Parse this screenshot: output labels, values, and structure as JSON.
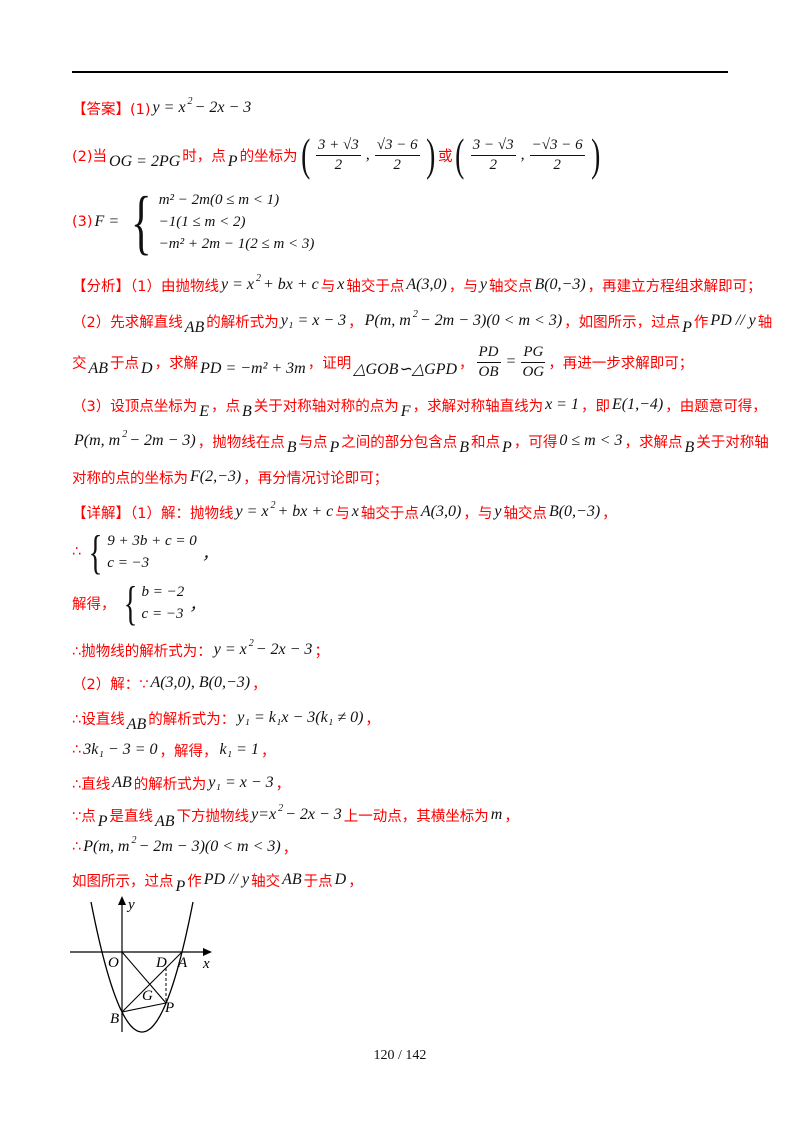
{
  "lines": [
    {
      "segs": [
        {
          "t": "r",
          "v": "【答案】(1)"
        },
        {
          "t": "m",
          "v": "y = x"
        },
        {
          "t": "s",
          "v": "2"
        },
        {
          "t": "m",
          "v": " − 2x − 3"
        }
      ]
    },
    {
      "segs": [
        {
          "t": "r",
          "v": "(2)当"
        },
        {
          "t": "l",
          "v": "OG = 2PG"
        },
        {
          "t": "r",
          "v": "时，点"
        },
        {
          "t": "l",
          "v": "P"
        },
        {
          "t": "r",
          "v": "的坐标为"
        },
        {
          "t": "bp",
          "v": "("
        },
        {
          "t": "f",
          "n": "3 + √3",
          "d": "2"
        },
        {
          "t": "m",
          "v": ","
        },
        {
          "t": "f",
          "n": "√3 − 6",
          "d": "2"
        },
        {
          "t": "bp",
          "v": ")"
        },
        {
          "t": "r",
          "v": "或"
        },
        {
          "t": "bp",
          "v": "("
        },
        {
          "t": "f",
          "n": "3 − √3",
          "d": "2"
        },
        {
          "t": "m",
          "v": ","
        },
        {
          "t": "f",
          "n": "−√3 − 6",
          "d": "2"
        },
        {
          "t": "bp",
          "v": ")"
        }
      ]
    },
    {
      "segs": [
        {
          "t": "r",
          "v": "(3)"
        },
        {
          "t": "m",
          "v": "F ="
        },
        {
          "t": "sys",
          "rows": [
            "m² − 2m(0 ≤ m < 1)",
            "−1(1 ≤ m < 2)",
            "−m² + 2m − 1(2 ≤ m < 3)"
          ]
        }
      ]
    },
    {
      "segs": [
        {
          "t": "r",
          "v": "【分析】（1）由抛物线"
        },
        {
          "t": "m",
          "v": "y = x"
        },
        {
          "t": "s",
          "v": "2"
        },
        {
          "t": "m",
          "v": " + bx + c"
        },
        {
          "t": "r",
          "v": "与"
        },
        {
          "t": "m",
          "v": "x"
        },
        {
          "t": "r",
          "v": "轴交于点"
        },
        {
          "t": "m",
          "v": "A(3,0)"
        },
        {
          "t": "r",
          "v": "，与"
        },
        {
          "t": "m",
          "v": "y"
        },
        {
          "t": "r",
          "v": "轴交点"
        },
        {
          "t": "m",
          "v": "B(0,−3)"
        },
        {
          "t": "r",
          "v": "，再建立方程组求解即可；"
        }
      ]
    },
    {
      "segs": [
        {
          "t": "r",
          "v": "（2）先求解直线"
        },
        {
          "t": "l",
          "v": "AB"
        },
        {
          "t": "r",
          "v": "的解析式为"
        },
        {
          "t": "m",
          "v": "y₁ = x − 3"
        },
        {
          "t": "r",
          "v": "，"
        },
        {
          "t": "m",
          "v": "P(m, m"
        },
        {
          "t": "s",
          "v": "2"
        },
        {
          "t": "m",
          "v": " − 2m − 3)(0 < m < 3)"
        },
        {
          "t": "r",
          "v": "，如图所示，过点"
        },
        {
          "t": "l",
          "v": "P"
        },
        {
          "t": "r",
          "v": "作"
        },
        {
          "t": "m",
          "v": "PD // y"
        },
        {
          "t": "r",
          "v": "轴"
        }
      ]
    },
    {
      "segs": [
        {
          "t": "r",
          "v": "交"
        },
        {
          "t": "l",
          "v": "AB"
        },
        {
          "t": "r",
          "v": "于点"
        },
        {
          "t": "l",
          "v": "D"
        },
        {
          "t": "r",
          "v": "，求解"
        },
        {
          "t": "l",
          "v": "PD = −m² + 3m"
        },
        {
          "t": "r",
          "v": "，证明"
        },
        {
          "t": "l",
          "v": "△GOB∽△GPD"
        },
        {
          "t": "r",
          "v": "，"
        },
        {
          "t": "f",
          "n": "PD",
          "d": "OB"
        },
        {
          "t": "m",
          "v": "="
        },
        {
          "t": "f",
          "n": "PG",
          "d": "OG"
        },
        {
          "t": "r",
          "v": "，再进一步求解即可；"
        }
      ]
    },
    {
      "segs": [
        {
          "t": "r",
          "v": "（3）设顶点坐标为"
        },
        {
          "t": "l",
          "v": "E"
        },
        {
          "t": "r",
          "v": "，点"
        },
        {
          "t": "l",
          "v": "B"
        },
        {
          "t": "r",
          "v": "关于对称轴对称的点为"
        },
        {
          "t": "l",
          "v": "F"
        },
        {
          "t": "r",
          "v": "，求解对称轴直线为"
        },
        {
          "t": "m",
          "v": "x = 1"
        },
        {
          "t": "r",
          "v": "，即"
        },
        {
          "t": "m",
          "v": "E(1,−4)"
        },
        {
          "t": "r",
          "v": "，由题意可得，"
        }
      ]
    },
    {
      "segs": [
        {
          "t": "m",
          "v": "P(m, m"
        },
        {
          "t": "s",
          "v": "2"
        },
        {
          "t": "m",
          "v": " − 2m − 3)"
        },
        {
          "t": "r",
          "v": "，抛物线在点"
        },
        {
          "t": "l",
          "v": "B"
        },
        {
          "t": "r",
          "v": "与点"
        },
        {
          "t": "l",
          "v": "P"
        },
        {
          "t": "r",
          "v": "之间的部分包含点"
        },
        {
          "t": "l",
          "v": "B"
        },
        {
          "t": "r",
          "v": "和点"
        },
        {
          "t": "l",
          "v": "P"
        },
        {
          "t": "r",
          "v": "，可得"
        },
        {
          "t": "m",
          "v": "0 ≤ m < 3"
        },
        {
          "t": "r",
          "v": "，求解点"
        },
        {
          "t": "l",
          "v": "B"
        },
        {
          "t": "r",
          "v": "关于对称轴"
        }
      ]
    },
    {
      "segs": [
        {
          "t": "r",
          "v": "对称的点的坐标为"
        },
        {
          "t": "m",
          "v": "F(2,−3)"
        },
        {
          "t": "r",
          "v": "，再分情况讨论即可；"
        }
      ]
    },
    {
      "segs": [
        {
          "t": "r",
          "v": "【详解】（1）解：抛物线"
        },
        {
          "t": "m",
          "v": "y = x"
        },
        {
          "t": "s",
          "v": "2"
        },
        {
          "t": "m",
          "v": " + bx + c"
        },
        {
          "t": "r",
          "v": "与"
        },
        {
          "t": "m",
          "v": "x"
        },
        {
          "t": "r",
          "v": "轴交于点"
        },
        {
          "t": "m",
          "v": "A(3,0)"
        },
        {
          "t": "r",
          "v": "，与"
        },
        {
          "t": "m",
          "v": "y"
        },
        {
          "t": "r",
          "v": "轴交点"
        },
        {
          "t": "m",
          "v": "B(0,−3)"
        },
        {
          "t": "r",
          "v": "，"
        }
      ]
    },
    {
      "segs": [
        {
          "t": "r",
          "v": "∴"
        },
        {
          "t": "sys",
          "rows": [
            "9 + 3b + c = 0",
            "c = −3"
          ]
        },
        {
          "t": "m",
          "v": "，"
        }
      ]
    },
    {
      "segs": [
        {
          "t": "r",
          "v": "解得，"
        },
        {
          "t": "sys",
          "rows": [
            "b = −2",
            "c = −3"
          ]
        },
        {
          "t": "m",
          "v": "，"
        }
      ]
    },
    {
      "segs": [
        {
          "t": "r",
          "v": "∴抛物线的解析式为："
        },
        {
          "t": "m",
          "v": "y = x"
        },
        {
          "t": "s",
          "v": "2"
        },
        {
          "t": "m",
          "v": " − 2x − 3"
        },
        {
          "t": "r",
          "v": "；"
        }
      ]
    },
    {
      "segs": [
        {
          "t": "r",
          "v": "（2）解：∵"
        },
        {
          "t": "m",
          "v": "A(3,0), B(0,−3)"
        },
        {
          "t": "r",
          "v": "，"
        }
      ]
    },
    {
      "segs": [
        {
          "t": "r",
          "v": "∴设直线"
        },
        {
          "t": "l",
          "v": "AB"
        },
        {
          "t": "r",
          "v": "的解析式为："
        },
        {
          "t": "m",
          "v": "y₁ = k₁x − 3(k₁ ≠ 0)"
        },
        {
          "t": "r",
          "v": "，"
        }
      ]
    },
    {
      "segs": [
        {
          "t": "r",
          "v": "∴"
        },
        {
          "t": "m",
          "v": "3k₁ − 3 = 0"
        },
        {
          "t": "r",
          "v": "，解得，"
        },
        {
          "t": "m",
          "v": "k₁ = 1"
        },
        {
          "t": "r",
          "v": "，"
        }
      ]
    },
    {
      "segs": [
        {
          "t": "r",
          "v": "∴直线"
        },
        {
          "t": "m",
          "v": "AB"
        },
        {
          "t": "r",
          "v": "的解析式为"
        },
        {
          "t": "m",
          "v": "y₁ = x − 3"
        },
        {
          "t": "r",
          "v": "，"
        }
      ]
    },
    {
      "segs": [
        {
          "t": "r",
          "v": "∵点"
        },
        {
          "t": "l",
          "v": "P"
        },
        {
          "t": "r",
          "v": "是直线"
        },
        {
          "t": "l",
          "v": "AB"
        },
        {
          "t": "r",
          "v": "下方抛物线"
        },
        {
          "t": "m",
          "v": "y=x"
        },
        {
          "t": "s",
          "v": "2"
        },
        {
          "t": "m",
          "v": " − 2x − 3"
        },
        {
          "t": "r",
          "v": "上一动点，其横坐标为"
        },
        {
          "t": "m",
          "v": "m"
        },
        {
          "t": "r",
          "v": "，"
        }
      ]
    },
    {
      "segs": [
        {
          "t": "r",
          "v": "∴"
        },
        {
          "t": "m",
          "v": "P(m, m"
        },
        {
          "t": "s",
          "v": "2"
        },
        {
          "t": "m",
          "v": " − 2m − 3)(0 < m < 3)"
        },
        {
          "t": "r",
          "v": "，"
        }
      ]
    },
    {
      "segs": [
        {
          "t": "r",
          "v": "如图所示，过点"
        },
        {
          "t": "l",
          "v": "P"
        },
        {
          "t": "r",
          "v": "作"
        },
        {
          "t": "m",
          "v": "PD // y"
        },
        {
          "t": "r",
          "v": "轴交"
        },
        {
          "t": "m",
          "v": "AB"
        },
        {
          "t": "r",
          "v": "于点"
        },
        {
          "t": "m",
          "v": "D"
        },
        {
          "t": "r",
          "v": "，"
        }
      ]
    }
  ],
  "figure": {
    "labels": {
      "y": "y",
      "x": "x",
      "O": "O",
      "D": "D",
      "A": "A",
      "G": "G",
      "P": "P",
      "B": "B"
    }
  },
  "footer": {
    "page_number": "120 / 142"
  },
  "colors": {
    "highlight": "#ff0000",
    "text": "#111111"
  }
}
